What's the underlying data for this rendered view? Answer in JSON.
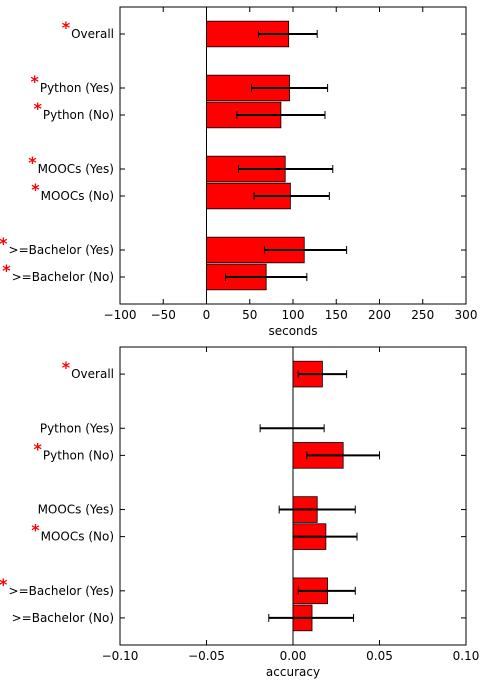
{
  "chart_data": [
    {
      "type": "bar",
      "orientation": "horizontal",
      "title": "",
      "xlabel": "seconds",
      "ylabel": "",
      "xlim": [
        -100,
        300
      ],
      "xticks": [
        -100,
        -50,
        0,
        50,
        100,
        150,
        200,
        250,
        300
      ],
      "xtick_labels": [
        "−100",
        "−50",
        "0",
        "50",
        "100",
        "150",
        "200",
        "250",
        "300"
      ],
      "grid": false,
      "bar_color": "#ff0000",
      "groups": [
        [
          {
            "label": "Overall",
            "starred": true,
            "value": 95,
            "err_low": 60,
            "err_high": 128
          }
        ],
        [
          {
            "label": "Python (Yes)",
            "starred": true,
            "value": 96,
            "err_low": 52,
            "err_high": 140
          },
          {
            "label": "Python (No)",
            "starred": true,
            "value": 86,
            "err_low": 35,
            "err_high": 137
          }
        ],
        [
          {
            "label": "MOOCs (Yes)",
            "starred": true,
            "value": 91,
            "err_low": 37,
            "err_high": 146
          },
          {
            "label": "MOOCs (No)",
            "starred": true,
            "value": 97,
            "err_low": 55,
            "err_high": 142
          }
        ],
        [
          {
            "label": ">=Bachelor (Yes)",
            "starred": true,
            "value": 113,
            "err_low": 67,
            "err_high": 162
          },
          {
            "label": ">=Bachelor (No)",
            "starred": true,
            "value": 69,
            "err_low": 22,
            "err_high": 116
          }
        ]
      ]
    },
    {
      "type": "bar",
      "orientation": "horizontal",
      "title": "",
      "xlabel": "accuracy",
      "ylabel": "",
      "xlim": [
        -0.1,
        0.1
      ],
      "xticks": [
        -0.1,
        -0.05,
        0,
        0.05,
        0.1
      ],
      "xtick_labels": [
        "−0.10",
        "−0.05",
        "0.00",
        "0.05",
        "0.10"
      ],
      "grid": false,
      "bar_color": "#ff0000",
      "groups": [
        [
          {
            "label": "Overall",
            "starred": true,
            "value": 0.017,
            "err_low": 0.003,
            "err_high": 0.031
          }
        ],
        [
          {
            "label": "Python (Yes)",
            "starred": false,
            "value": 0.0,
            "err_low": -0.019,
            "err_high": 0.018
          },
          {
            "label": "Python (No)",
            "starred": true,
            "value": 0.029,
            "err_low": 0.008,
            "err_high": 0.05
          }
        ],
        [
          {
            "label": "MOOCs (Yes)",
            "starred": false,
            "value": 0.014,
            "err_low": -0.008,
            "err_high": 0.036
          },
          {
            "label": "MOOCs (No)",
            "starred": true,
            "value": 0.019,
            "err_low": 0.0,
            "err_high": 0.037
          }
        ],
        [
          {
            "label": ">=Bachelor (Yes)",
            "starred": true,
            "value": 0.02,
            "err_low": 0.003,
            "err_high": 0.036
          },
          {
            "label": ">=Bachelor (No)",
            "starred": false,
            "value": 0.011,
            "err_low": -0.014,
            "err_high": 0.035
          }
        ]
      ]
    }
  ]
}
